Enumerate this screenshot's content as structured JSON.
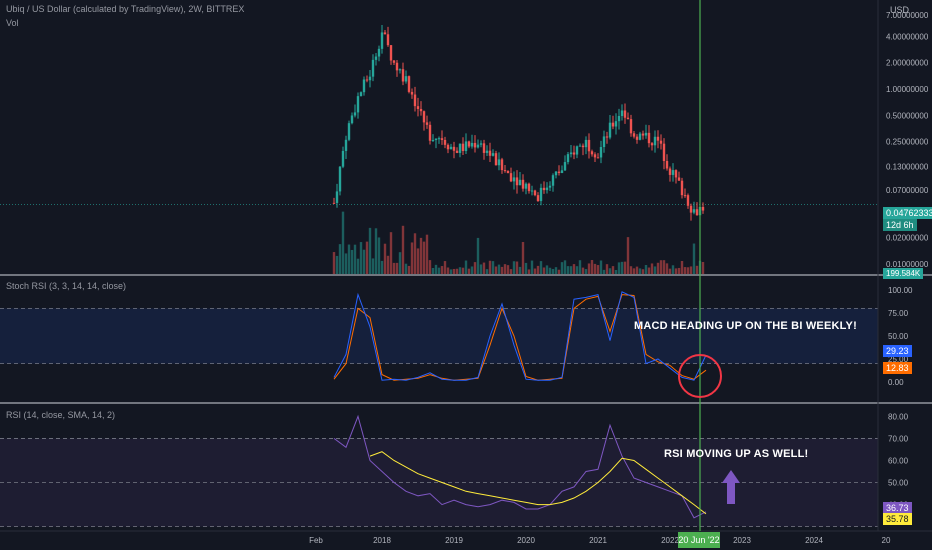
{
  "header": {
    "title": "Ubiq / US Dollar (calculated by TradingView), 2W, BITTREX",
    "vol_label": "Vol",
    "currency": "USD"
  },
  "price_pane": {
    "axis_ticks": [
      "7.00000000",
      "4.00000000",
      "2.00000000",
      "1.00000000",
      "0.50000000",
      "0.25000000",
      "0.13000000",
      "0.07000000",
      "0.02000000",
      "0.01000000"
    ],
    "last_price": "0.04762333",
    "countdown": "12d 6h",
    "volume_badge": "199.584K",
    "up_color": "#26a69a",
    "down_color": "#ef5350"
  },
  "stoch_pane": {
    "title": "Stoch RSI (3, 3, 14, 14, close)",
    "axis_ticks": [
      "100.00",
      "75.00",
      "50.00",
      "25.00",
      "0.00"
    ],
    "k_value": "29.23",
    "d_value": "12.83",
    "k_color": "#2962ff",
    "d_color": "#ff6d00",
    "annotation": "MACD HEADING UP ON THE BI WEEKLY!"
  },
  "rsi_pane": {
    "title": "RSI (14, close, SMA, 14, 2)",
    "axis_ticks": [
      "80.00",
      "70.00",
      "60.00",
      "50.00",
      "40.00"
    ],
    "rsi_value": "36.73",
    "sma_value": "35.78",
    "rsi_color": "#7e57c2",
    "sma_color": "#ffeb3b",
    "annotation": "RSI MOVING UP AS WELL!"
  },
  "time_axis": {
    "labels": [
      "Feb",
      "2018",
      "2019",
      "2020",
      "2021",
      "2022",
      "2023",
      "2024",
      "20"
    ],
    "cursor_label": "20 Jun '22"
  },
  "chart_data": [
    {
      "type": "line",
      "title": "Ubiq / US Dollar (calculated by TradingView), 2W, BITTREX",
      "y_scale": "log",
      "x": [
        "2017-05",
        "2017-07",
        "2017-09",
        "2017-11",
        "2018-01",
        "2018-03",
        "2018-05",
        "2018-07",
        "2018-09",
        "2018-11",
        "2019-01",
        "2019-03",
        "2019-05",
        "2019-07",
        "2019-09",
        "2019-11",
        "2020-01",
        "2020-03",
        "2020-05",
        "2020-07",
        "2020-09",
        "2020-11",
        "2021-01",
        "2021-03",
        "2021-05",
        "2021-07",
        "2021-09",
        "2021-11",
        "2022-01",
        "2022-03",
        "2022-05",
        "2022-07"
      ],
      "series": [
        {
          "values": [
            0.05,
            0.3,
            0.8,
            1.5,
            4.5,
            2.0,
            1.3,
            0.6,
            0.3,
            0.28,
            0.2,
            0.22,
            0.25,
            0.18,
            0.12,
            0.1,
            0.08,
            0.06,
            0.09,
            0.12,
            0.2,
            0.25,
            0.18,
            0.35,
            0.6,
            0.3,
            0.28,
            0.25,
            0.12,
            0.07,
            0.04,
            0.0476
          ]
        }
      ]
    },
    {
      "type": "line",
      "title": "Stoch RSI (3, 3, 14, 14, close)",
      "ylim": [
        0,
        100
      ],
      "x": [
        "2017-05",
        "2017-07",
        "2017-09",
        "2017-11",
        "2018-01",
        "2018-03",
        "2018-05",
        "2018-07",
        "2018-09",
        "2018-11",
        "2019-01",
        "2019-03",
        "2019-05",
        "2019-07",
        "2019-09",
        "2019-11",
        "2020-01",
        "2020-03",
        "2020-05",
        "2020-07",
        "2020-09",
        "2020-11",
        "2021-01",
        "2021-03",
        "2021-05",
        "2021-07",
        "2021-09",
        "2021-11",
        "2022-01",
        "2022-03",
        "2022-05",
        "2022-07"
      ],
      "series": [
        {
          "values": [
            5,
            30,
            95,
            60,
            2,
            3,
            2,
            5,
            10,
            3,
            2,
            2,
            5,
            50,
            85,
            40,
            3,
            2,
            2,
            5,
            90,
            92,
            95,
            45,
            98,
            92,
            20,
            25,
            15,
            5,
            2,
            29.23
          ]
        },
        {
          "values": [
            3,
            20,
            80,
            70,
            8,
            2,
            3,
            4,
            8,
            4,
            2,
            3,
            4,
            40,
            80,
            50,
            6,
            2,
            3,
            4,
            80,
            90,
            93,
            55,
            95,
            94,
            30,
            22,
            18,
            7,
            3,
            12.83
          ]
        }
      ]
    },
    {
      "type": "line",
      "title": "RSI (14, close, SMA, 14, 2)",
      "x": [
        "2017-05",
        "2017-07",
        "2017-09",
        "2017-11",
        "2018-01",
        "2018-03",
        "2018-05",
        "2018-07",
        "2018-09",
        "2018-11",
        "2019-01",
        "2019-03",
        "2019-05",
        "2019-07",
        "2019-09",
        "2019-11",
        "2020-01",
        "2020-03",
        "2020-05",
        "2020-07",
        "2020-09",
        "2020-11",
        "2021-01",
        "2021-03",
        "2021-05",
        "2021-07",
        "2021-09",
        "2021-11",
        "2022-01",
        "2022-03",
        "2022-05",
        "2022-07"
      ],
      "series": [
        {
          "values": [
            70,
            66,
            80,
            60,
            55,
            50,
            46,
            44,
            45,
            40,
            42,
            40,
            39,
            40,
            42,
            41,
            38,
            38,
            40,
            46,
            48,
            55,
            56,
            76,
            62,
            52,
            50,
            48,
            46,
            44,
            34,
            36.73
          ]
        },
        {
          "values": [
            null,
            null,
            null,
            62,
            64,
            60,
            57,
            54,
            52,
            50,
            48,
            46,
            45,
            44,
            43,
            42,
            41,
            40,
            40,
            41,
            43,
            46,
            50,
            55,
            61,
            60,
            56,
            52,
            48,
            44,
            40,
            35.78
          ]
        }
      ]
    }
  ]
}
